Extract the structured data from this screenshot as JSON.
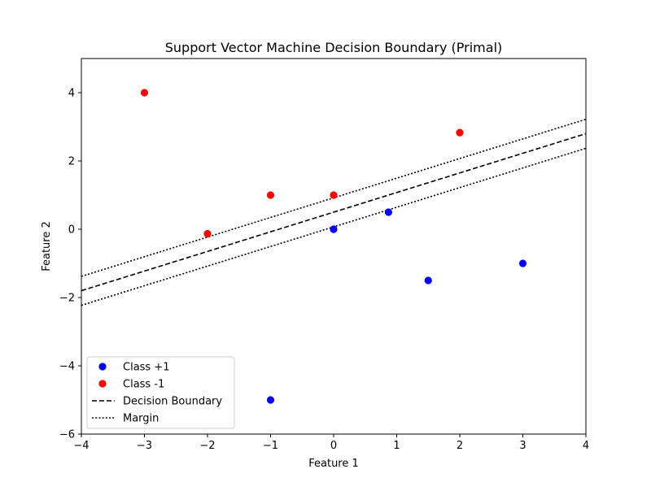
{
  "chart_data": {
    "type": "scatter",
    "title": "Support Vector Machine Decision Boundary (Primal)",
    "xlabel": "Feature 1",
    "ylabel": "Feature 2",
    "xlim": [
      -4,
      4
    ],
    "ylim": [
      -6,
      5
    ],
    "xticks": [
      -4,
      -3,
      -2,
      -1,
      0,
      1,
      2,
      3,
      4
    ],
    "yticks": [
      -6,
      -4,
      -2,
      0,
      2,
      4
    ],
    "xtick_labels": [
      "−4",
      "−3",
      "−2",
      "−1",
      "0",
      "1",
      "2",
      "3",
      "4"
    ],
    "ytick_labels": [
      "−6",
      "−4",
      "−2",
      "0",
      "2",
      "4"
    ],
    "grid": false,
    "legend_position": "lower-left",
    "series": [
      {
        "name": "Class +1",
        "kind": "points",
        "color": "#0000ff",
        "points": [
          [
            0,
            0
          ],
          [
            0.87,
            0.5
          ],
          [
            1.5,
            -1.5
          ],
          [
            3,
            -1
          ],
          [
            -1,
            -5
          ]
        ]
      },
      {
        "name": "Class -1",
        "kind": "points",
        "color": "#ff0000",
        "points": [
          [
            -3,
            4
          ],
          [
            -2,
            -0.13
          ],
          [
            -1,
            1
          ],
          [
            0,
            1
          ],
          [
            2,
            2.83
          ]
        ]
      },
      {
        "name": "Decision Boundary",
        "kind": "line",
        "style": "dashed",
        "color": "#000000",
        "points": [
          [
            -4,
            -1.8
          ],
          [
            4,
            2.8
          ]
        ]
      },
      {
        "name": "Margin",
        "kind": "line",
        "style": "dotted",
        "color": "#000000",
        "points": [
          [
            -4,
            -1.38
          ],
          [
            4,
            3.22
          ]
        ]
      },
      {
        "name": "",
        "kind": "line",
        "style": "dotted",
        "color": "#000000",
        "points": [
          [
            -4,
            -2.23
          ],
          [
            4,
            2.37
          ]
        ]
      }
    ],
    "legend": [
      "Class +1",
      "Class -1",
      "Decision Boundary",
      "Margin"
    ]
  }
}
